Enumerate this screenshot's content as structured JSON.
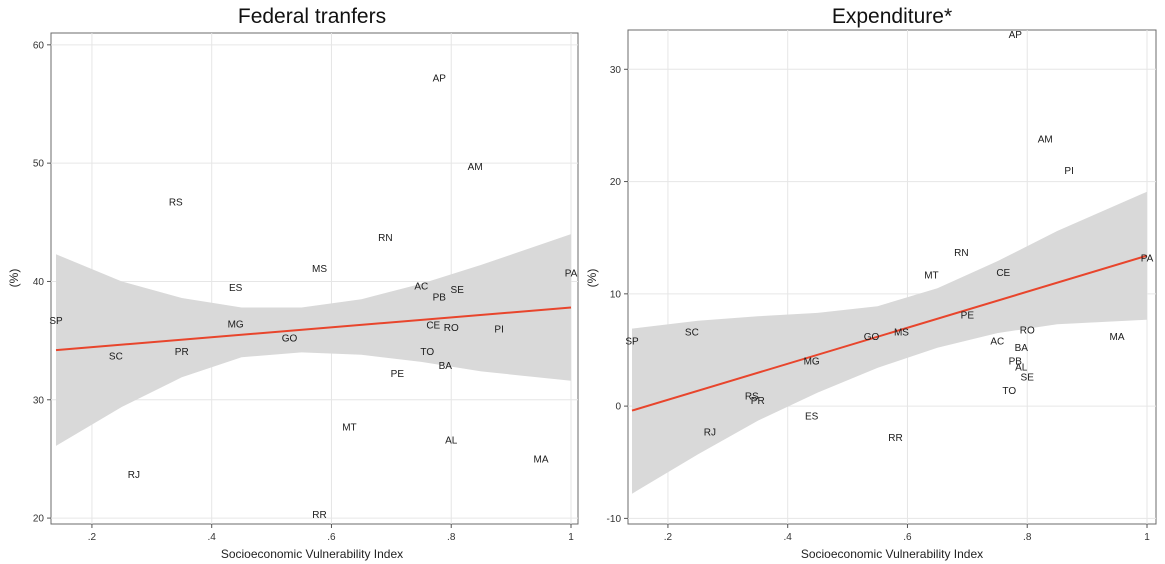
{
  "chart_data": [
    {
      "type": "scatter",
      "title": "Federal tranfers",
      "xlabel": "Socioeconomic Vulnerability Index",
      "ylabel": "(%)",
      "xlim": [
        0.14,
        1.0
      ],
      "ylim": [
        19.5,
        61.0
      ],
      "xticks": [
        0.2,
        0.4,
        0.6,
        0.8,
        1.0
      ],
      "xtick_labels": [
        ".2",
        ".4",
        ".6",
        ".8",
        "1"
      ],
      "yticks": [
        20,
        30,
        40,
        50,
        60
      ],
      "ytick_labels": [
        "20",
        "30",
        "40",
        "50",
        "60"
      ],
      "grid": true,
      "points": [
        {
          "label": "AP",
          "x": 0.78,
          "y": 57.2
        },
        {
          "label": "AM",
          "x": 0.84,
          "y": 49.7
        },
        {
          "label": "RS",
          "x": 0.34,
          "y": 46.7
        },
        {
          "label": "RN",
          "x": 0.69,
          "y": 43.7
        },
        {
          "label": "MS",
          "x": 0.58,
          "y": 41.1
        },
        {
          "label": "PA",
          "x": 1.0,
          "y": 40.7
        },
        {
          "label": "ES",
          "x": 0.44,
          "y": 39.5
        },
        {
          "label": "AC",
          "x": 0.75,
          "y": 39.6
        },
        {
          "label": "SE",
          "x": 0.81,
          "y": 39.3
        },
        {
          "label": "PB",
          "x": 0.78,
          "y": 38.7
        },
        {
          "label": "SP",
          "x": 0.14,
          "y": 36.7
        },
        {
          "label": "MG",
          "x": 0.44,
          "y": 36.4
        },
        {
          "label": "CE",
          "x": 0.77,
          "y": 36.3
        },
        {
          "label": "RO",
          "x": 0.8,
          "y": 36.1
        },
        {
          "label": "PI",
          "x": 0.88,
          "y": 36.0
        },
        {
          "label": "GO",
          "x": 0.53,
          "y": 35.2
        },
        {
          "label": "PR",
          "x": 0.35,
          "y": 34.1
        },
        {
          "label": "TO",
          "x": 0.76,
          "y": 34.1
        },
        {
          "label": "SC",
          "x": 0.24,
          "y": 33.7
        },
        {
          "label": "BA",
          "x": 0.79,
          "y": 32.9
        },
        {
          "label": "PE",
          "x": 0.71,
          "y": 32.2
        },
        {
          "label": "MT",
          "x": 0.63,
          "y": 27.7
        },
        {
          "label": "AL",
          "x": 0.8,
          "y": 26.6
        },
        {
          "label": "MA",
          "x": 0.95,
          "y": 25.0
        },
        {
          "label": "RJ",
          "x": 0.27,
          "y": 23.7
        },
        {
          "label": "RR",
          "x": 0.58,
          "y": 20.3
        }
      ],
      "fit": {
        "x": [
          0.14,
          1.0
        ],
        "y": [
          34.2,
          37.8
        ]
      },
      "ci": {
        "x": [
          0.14,
          0.25,
          0.35,
          0.45,
          0.55,
          0.65,
          0.75,
          0.85,
          1.0
        ],
        "lower": [
          26.1,
          29.4,
          31.9,
          33.6,
          34.0,
          33.8,
          33.2,
          32.4,
          31.6
        ],
        "upper": [
          42.3,
          40.0,
          38.6,
          37.8,
          37.8,
          38.5,
          39.8,
          41.4,
          44.0
        ]
      },
      "colors": {
        "fit": "#e8452c",
        "ci": "#d9d9d9",
        "grid": "#e6e6e6"
      }
    },
    {
      "type": "scatter",
      "title": "Expenditure*",
      "xlabel": "Socioeconomic Vulnerability Index",
      "ylabel": "(%)",
      "xlim": [
        0.14,
        1.0
      ],
      "ylim": [
        -10.5,
        33.5
      ],
      "xticks": [
        0.2,
        0.4,
        0.6,
        0.8,
        1.0
      ],
      "xtick_labels": [
        ".2",
        ".4",
        ".6",
        ".8",
        "1"
      ],
      "yticks": [
        -10,
        0,
        10,
        20,
        30
      ],
      "ytick_labels": [
        "-10",
        "0",
        "10",
        "20",
        "30"
      ],
      "grid": true,
      "points": [
        {
          "label": "AP",
          "x": 0.78,
          "y": 33.1
        },
        {
          "label": "AM",
          "x": 0.83,
          "y": 23.8
        },
        {
          "label": "PI",
          "x": 0.87,
          "y": 21.0
        },
        {
          "label": "RN",
          "x": 0.69,
          "y": 13.7
        },
        {
          "label": "PA",
          "x": 1.0,
          "y": 13.2
        },
        {
          "label": "CE",
          "x": 0.76,
          "y": 11.9
        },
        {
          "label": "MT",
          "x": 0.64,
          "y": 11.7
        },
        {
          "label": "PE",
          "x": 0.7,
          "y": 8.1
        },
        {
          "label": "RO",
          "x": 0.8,
          "y": 6.8
        },
        {
          "label": "SC",
          "x": 0.24,
          "y": 6.6
        },
        {
          "label": "MS",
          "x": 0.59,
          "y": 6.6
        },
        {
          "label": "GO",
          "x": 0.54,
          "y": 6.2
        },
        {
          "label": "MA",
          "x": 0.95,
          "y": 6.2
        },
        {
          "label": "SP",
          "x": 0.14,
          "y": 5.8
        },
        {
          "label": "AC",
          "x": 0.75,
          "y": 5.8
        },
        {
          "label": "BA",
          "x": 0.79,
          "y": 5.2
        },
        {
          "label": "MG",
          "x": 0.44,
          "y": 4.0
        },
        {
          "label": "PB",
          "x": 0.78,
          "y": 4.0
        },
        {
          "label": "AL",
          "x": 0.79,
          "y": 3.5
        },
        {
          "label": "SE",
          "x": 0.8,
          "y": 2.6
        },
        {
          "label": "TO",
          "x": 0.77,
          "y": 1.4
        },
        {
          "label": "RS",
          "x": 0.34,
          "y": 0.9
        },
        {
          "label": "PR",
          "x": 0.35,
          "y": 0.5
        },
        {
          "label": "ES",
          "x": 0.44,
          "y": -0.9
        },
        {
          "label": "RJ",
          "x": 0.27,
          "y": -2.3
        },
        {
          "label": "RR",
          "x": 0.58,
          "y": -2.8
        }
      ],
      "fit": {
        "x": [
          0.14,
          1.0
        ],
        "y": [
          -0.4,
          13.4
        ]
      },
      "ci": {
        "x": [
          0.14,
          0.25,
          0.35,
          0.45,
          0.55,
          0.65,
          0.75,
          0.85,
          1.0
        ],
        "lower": [
          -7.8,
          -4.3,
          -1.3,
          1.2,
          3.4,
          5.2,
          6.5,
          7.3,
          7.7
        ],
        "upper": [
          6.9,
          7.6,
          8.0,
          8.3,
          8.9,
          10.5,
          12.9,
          15.6,
          19.1
        ]
      },
      "colors": {
        "fit": "#e8452c",
        "ci": "#d9d9d9",
        "grid": "#e6e6e6"
      }
    }
  ]
}
